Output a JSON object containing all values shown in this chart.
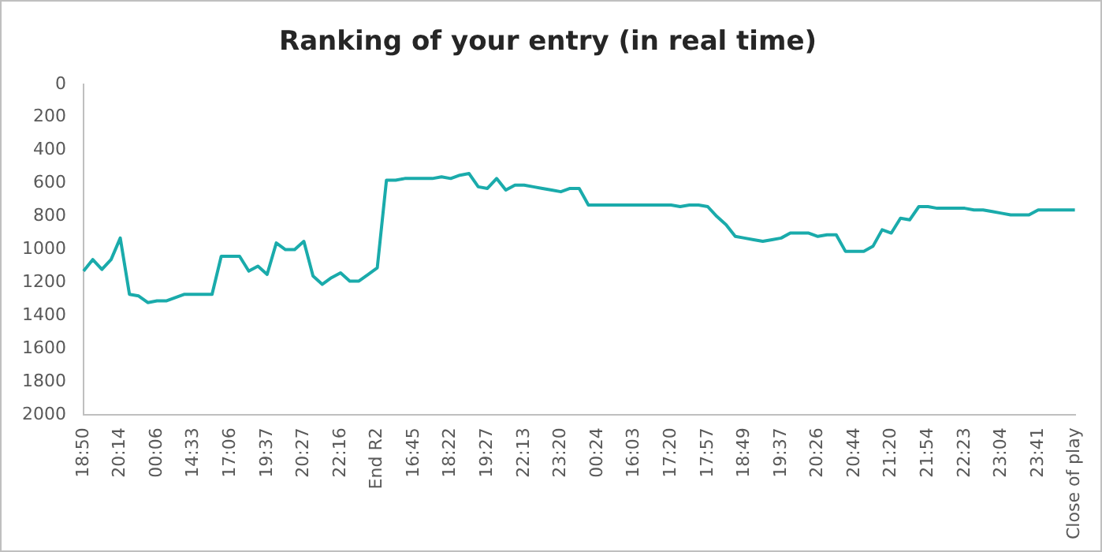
{
  "chart_data": {
    "type": "line",
    "title": "Ranking of your entry (in real time)",
    "categories": [
      "18:50",
      null,
      null,
      null,
      "20:14",
      null,
      null,
      null,
      "00:06",
      null,
      null,
      null,
      "14:33",
      null,
      null,
      null,
      "17:06",
      null,
      null,
      null,
      "19:37",
      null,
      null,
      null,
      "20:27",
      null,
      null,
      null,
      "22:16",
      null,
      null,
      null,
      "End R2",
      null,
      null,
      null,
      "16:45",
      null,
      null,
      null,
      "18:22",
      null,
      null,
      null,
      "19:27",
      null,
      null,
      null,
      "22:13",
      null,
      null,
      null,
      "23:20",
      null,
      null,
      null,
      "00:24",
      null,
      null,
      null,
      "16:03",
      null,
      null,
      null,
      "17:20",
      null,
      null,
      null,
      "17:57",
      null,
      null,
      null,
      "18:49",
      null,
      null,
      null,
      "19:37",
      null,
      null,
      null,
      "20:26",
      null,
      null,
      null,
      "20:44",
      null,
      null,
      null,
      "21:20",
      null,
      null,
      null,
      "21:54",
      null,
      null,
      null,
      "22:23",
      null,
      null,
      null,
      "23:04",
      null,
      null,
      null,
      "23:41",
      null,
      null,
      null,
      "Close of play"
    ],
    "series": [
      {
        "color": "#1aabab",
        "values": [
          1130,
          1060,
          1120,
          1060,
          930,
          1270,
          1280,
          1320,
          1310,
          1310,
          1290,
          1270,
          1270,
          1270,
          1270,
          1040,
          1040,
          1040,
          1130,
          1100,
          1150,
          960,
          1000,
          1000,
          950,
          1160,
          1210,
          1170,
          1140,
          1190,
          1190,
          1150,
          1110,
          580,
          580,
          570,
          570,
          570,
          570,
          560,
          570,
          550,
          540,
          620,
          630,
          570,
          640,
          610,
          610,
          620,
          630,
          640,
          650,
          630,
          630,
          730,
          730,
          730,
          730,
          730,
          730,
          730,
          730,
          730,
          730,
          740,
          730,
          730,
          740,
          800,
          850,
          920,
          930,
          940,
          950,
          940,
          930,
          900,
          900,
          900,
          920,
          910,
          910,
          1010,
          1010,
          1010,
          980,
          880,
          900,
          810,
          820,
          740,
          740,
          750,
          750,
          750,
          750,
          760,
          760,
          770,
          780,
          790,
          790,
          790,
          760,
          760,
          760,
          760,
          760
        ]
      }
    ],
    "ylim": [
      2000,
      0
    ],
    "yticks": [
      0,
      200,
      400,
      600,
      800,
      1000,
      1200,
      1400,
      1600,
      1800,
      2000
    ],
    "grid": false,
    "legend": false,
    "marker": "none",
    "line_style": "solid"
  }
}
